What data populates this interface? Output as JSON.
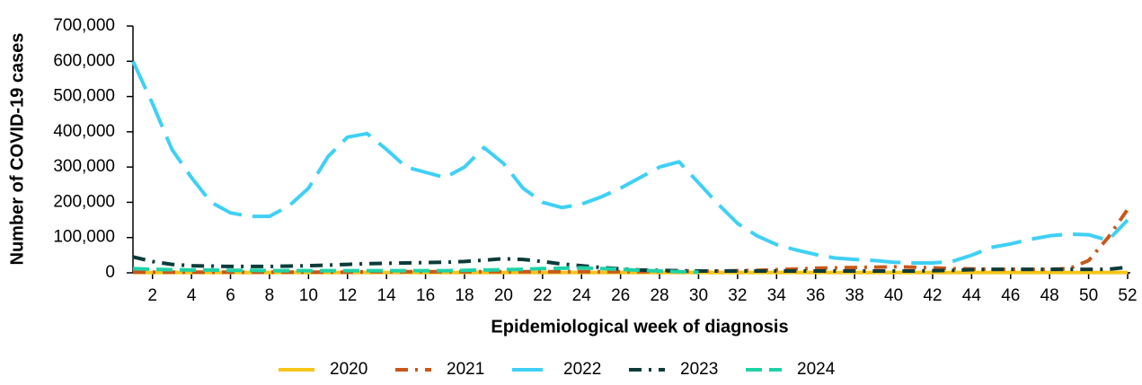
{
  "chart_data": {
    "type": "line",
    "x_label": "Epidemiological week of diagnosis",
    "y_label": "Number of COVID-19 cases",
    "x": [
      1,
      2,
      3,
      4,
      5,
      6,
      7,
      8,
      9,
      10,
      11,
      12,
      13,
      14,
      15,
      16,
      17,
      18,
      19,
      20,
      21,
      22,
      23,
      24,
      25,
      26,
      27,
      28,
      29,
      30,
      31,
      32,
      33,
      34,
      35,
      36,
      37,
      38,
      39,
      40,
      41,
      42,
      43,
      44,
      45,
      46,
      47,
      48,
      49,
      50,
      51,
      52
    ],
    "xlim": [
      1,
      52
    ],
    "xticks": [
      2,
      4,
      6,
      8,
      10,
      12,
      14,
      16,
      18,
      20,
      22,
      24,
      26,
      28,
      30,
      32,
      34,
      36,
      38,
      40,
      42,
      44,
      46,
      48,
      50,
      52
    ],
    "ylim": [
      0,
      700000
    ],
    "yticks": [
      0,
      {
        "value": 100000,
        "label": "100,000"
      },
      {
        "value": 200000,
        "label": "200,000"
      },
      {
        "value": 300000,
        "label": "300,000"
      },
      {
        "value": 400000,
        "label": "400,000"
      },
      {
        "value": 500000,
        "label": "500,000"
      },
      {
        "value": 600000,
        "label": "600,000"
      },
      {
        "value": 700000,
        "label": "700,000"
      }
    ],
    "legend": "bottom",
    "series": [
      {
        "name": "2020",
        "color": "#f5c518",
        "values": [
          1000,
          1000,
          1000,
          1000,
          1000,
          1000,
          1000,
          1000,
          1000,
          1000,
          1000,
          1000,
          1000,
          1000,
          1000,
          1000,
          1000,
          1000,
          1000,
          1000,
          1000,
          1000,
          1000,
          1000,
          1000,
          1000,
          1000,
          1000,
          1000,
          1000,
          1000,
          1000,
          1000,
          1000,
          1000,
          1000,
          1000,
          1000,
          1000,
          1000,
          1000,
          1000,
          1000,
          1000,
          1000,
          1000,
          1000,
          1000,
          1000,
          1000,
          1000,
          1000
        ]
      },
      {
        "name": "2021",
        "color": "#c8581a",
        "values": [
          2000,
          2000,
          2000,
          2000,
          2000,
          2000,
          2000,
          2000,
          2000,
          2000,
          2000,
          2000,
          3000,
          3000,
          3000,
          3000,
          3000,
          3000,
          3000,
          3000,
          3000,
          3000,
          3000,
          3000,
          3000,
          3000,
          3000,
          4000,
          4000,
          5000,
          5000,
          6000,
          7000,
          9000,
          11000,
          13000,
          14000,
          15000,
          16000,
          17000,
          16000,
          14000,
          12000,
          11000,
          10000,
          10000,
          10000,
          10000,
          12000,
          35000,
          100000,
          180000
        ]
      },
      {
        "name": "2022",
        "color": "#3fd0f5",
        "values": [
          600000,
          480000,
          350000,
          270000,
          200000,
          170000,
          160000,
          160000,
          190000,
          240000,
          330000,
          385000,
          395000,
          350000,
          300000,
          285000,
          270000,
          300000,
          355000,
          310000,
          240000,
          200000,
          185000,
          195000,
          215000,
          240000,
          270000,
          300000,
          315000,
          255000,
          195000,
          140000,
          105000,
          80000,
          65000,
          52000,
          42000,
          38000,
          35000,
          30000,
          28000,
          28000,
          32000,
          50000,
          72000,
          82000,
          95000,
          105000,
          110000,
          108000,
          92000,
          150000
        ]
      },
      {
        "name": "2023",
        "color": "#0d3b3b",
        "values": [
          45000,
          32000,
          24000,
          20000,
          19000,
          18000,
          18000,
          18000,
          19000,
          20000,
          22000,
          24000,
          26000,
          27000,
          28000,
          29000,
          30000,
          32000,
          36000,
          40000,
          38000,
          32000,
          25000,
          20000,
          15000,
          11000,
          8000,
          7000,
          6000,
          5000,
          5000,
          5000,
          5000,
          5000,
          5000,
          5000,
          5000,
          5000,
          5000,
          5000,
          5000,
          6000,
          7000,
          9000,
          10000,
          10000,
          10000,
          10000,
          10000,
          10000,
          10000,
          16000
        ]
      },
      {
        "name": "2024",
        "color": "#1fd3a6",
        "values": [
          12000,
          10000,
          9000,
          8000,
          8000,
          7000,
          7000,
          6000,
          6000,
          6000,
          6000,
          6000,
          6000,
          6000,
          6000,
          6000,
          6000,
          7000,
          8000,
          9000,
          10000,
          12000,
          13000,
          14000,
          12000,
          10000,
          7000,
          5000,
          3000,
          2000,
          null,
          null,
          null,
          null,
          null,
          null,
          null,
          null,
          null,
          null,
          null,
          null,
          null,
          null,
          null,
          null,
          null,
          null,
          null,
          null,
          null,
          null
        ]
      }
    ]
  }
}
